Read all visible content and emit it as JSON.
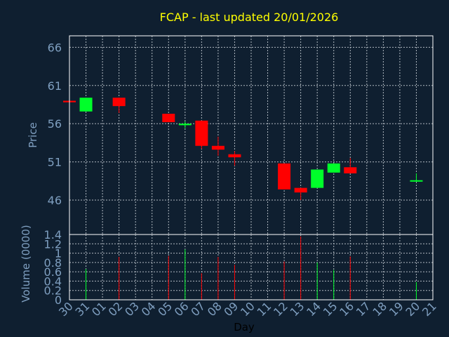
{
  "chart_data": [
    {
      "panel": "price",
      "type": "candlestick",
      "title": "FCAP - last updated 20/01/2026",
      "ylabel": "Price",
      "yticks": [
        "46",
        "51",
        "56",
        "61",
        "66"
      ],
      "ylim": [
        41.5,
        67.5
      ],
      "grid": true,
      "up_color": "#00ff2a",
      "down_color": "#ff0000",
      "categories": [
        "30",
        "31",
        "01",
        "02",
        "03",
        "04",
        "05",
        "06",
        "07",
        "08",
        "09",
        "10",
        "11",
        "12",
        "13",
        "14",
        "15",
        "16",
        "17",
        "18",
        "19",
        "20",
        "21"
      ],
      "candles": [
        {
          "day": "30",
          "open": 59.0,
          "high": 59.0,
          "low": 58.8,
          "close": 58.8
        },
        {
          "day": "31",
          "open": 57.6,
          "high": 59.4,
          "low": 57.6,
          "close": 59.4
        },
        {
          "day": "02",
          "open": 59.4,
          "high": 59.4,
          "low": 57.4,
          "close": 58.3
        },
        {
          "day": "05",
          "open": 57.3,
          "high": 57.3,
          "low": 56.2,
          "close": 56.2
        },
        {
          "day": "06",
          "open": 55.8,
          "high": 56.3,
          "low": 55.4,
          "close": 56.0
        },
        {
          "day": "07",
          "open": 56.4,
          "high": 56.4,
          "low": 52.7,
          "close": 53.1
        },
        {
          "day": "08",
          "open": 53.1,
          "high": 54.3,
          "low": 51.8,
          "close": 52.6
        },
        {
          "day": "09",
          "open": 52.0,
          "high": 52.4,
          "low": 50.5,
          "close": 51.6
        },
        {
          "day": "12",
          "open": 50.8,
          "high": 50.8,
          "low": 47.4,
          "close": 47.4
        },
        {
          "day": "13",
          "open": 47.6,
          "high": 47.6,
          "low": 46.0,
          "close": 47.0
        },
        {
          "day": "14",
          "open": 47.6,
          "high": 50.0,
          "low": 47.6,
          "close": 50.0
        },
        {
          "day": "15",
          "open": 49.6,
          "high": 50.8,
          "low": 49.6,
          "close": 50.8
        },
        {
          "day": "16",
          "open": 50.3,
          "high": 51.5,
          "low": 49.5,
          "close": 49.5
        },
        {
          "day": "20",
          "open": 48.5,
          "high": 49.5,
          "low": 48.4,
          "close": 48.6
        }
      ]
    },
    {
      "panel": "volume",
      "type": "bar",
      "ylabel": "Volume (0000)",
      "xlabel": "Day",
      "yticks": [
        "0",
        "0.2",
        "0.4",
        "0.6",
        "0.8",
        "1",
        "1.2",
        "1.4"
      ],
      "ylim": [
        0,
        1.4
      ],
      "grid": true,
      "categories": [
        "30",
        "31",
        "01",
        "02",
        "03",
        "04",
        "05",
        "06",
        "07",
        "08",
        "09",
        "10",
        "11",
        "12",
        "13",
        "14",
        "15",
        "16",
        "17",
        "18",
        "19",
        "20",
        "21"
      ],
      "bars": [
        {
          "day": "31",
          "value": 0.66,
          "color": "#00ff2a"
        },
        {
          "day": "02",
          "value": 0.92,
          "color": "#ff0000"
        },
        {
          "day": "05",
          "value": 0.94,
          "color": "#ff0000"
        },
        {
          "day": "06",
          "value": 1.08,
          "color": "#00ff2a"
        },
        {
          "day": "07",
          "value": 0.57,
          "color": "#ff0000"
        },
        {
          "day": "08",
          "value": 0.92,
          "color": "#ff0000"
        },
        {
          "day": "09",
          "value": 0.75,
          "color": "#ff0000"
        },
        {
          "day": "12",
          "value": 0.82,
          "color": "#ff0000"
        },
        {
          "day": "13",
          "value": 1.36,
          "color": "#ff0000"
        },
        {
          "day": "14",
          "value": 0.8,
          "color": "#00ff2a"
        },
        {
          "day": "15",
          "value": 0.64,
          "color": "#00ff2a"
        },
        {
          "day": "16",
          "value": 0.93,
          "color": "#ff0000"
        },
        {
          "day": "20",
          "value": 0.38,
          "color": "#00ff2a"
        }
      ]
    }
  ]
}
